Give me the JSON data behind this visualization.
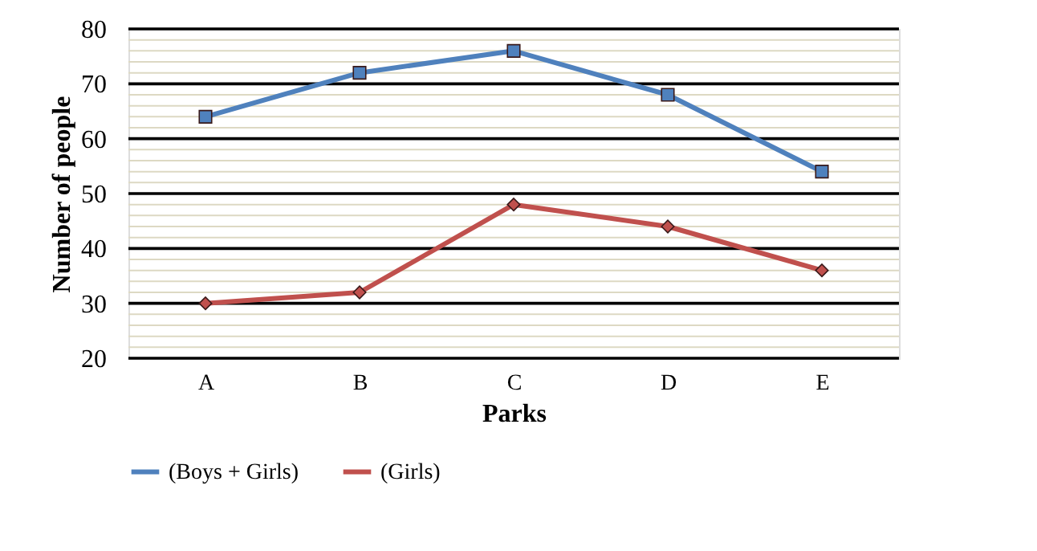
{
  "chart_data": {
    "type": "line",
    "xlabel": "Parks",
    "ylabel": "Number of people",
    "categories": [
      "A",
      "B",
      "C",
      "D",
      "E"
    ],
    "series": [
      {
        "name": "(Boys + Girls)",
        "color": "#4f81bd",
        "marker": "square",
        "values": [
          64,
          72,
          76,
          68,
          54
        ]
      },
      {
        "name": "(Girls)",
        "color": "#c0504d",
        "marker": "diamond",
        "values": [
          30,
          32,
          48,
          44,
          36
        ]
      }
    ],
    "ylim": [
      20,
      80
    ],
    "yticks": [
      20,
      {
        "value": 22,
        "label": null
      },
      {
        "value": 24,
        "label": null
      },
      {
        "value": 26,
        "label": null
      },
      {
        "value": 28,
        "label": null
      },
      30,
      {
        "value": 32,
        "label": null
      },
      {
        "value": 34,
        "label": null
      },
      {
        "value": 36,
        "label": null
      },
      {
        "value": 38,
        "label": null
      },
      40,
      {
        "value": 42,
        "label": null
      },
      {
        "value": 44,
        "label": null
      },
      {
        "value": 46,
        "label": null
      },
      {
        "value": 48,
        "label": null
      },
      50,
      {
        "value": 52,
        "label": null
      },
      {
        "value": 54,
        "label": null
      },
      {
        "value": 56,
        "label": null
      },
      {
        "value": 58,
        "label": null
      },
      60,
      {
        "value": 62,
        "label": null
      },
      {
        "value": 64,
        "label": null
      },
      {
        "value": 66,
        "label": null
      },
      {
        "value": 68,
        "label": null
      },
      70,
      {
        "value": 72,
        "label": null
      },
      {
        "value": 74,
        "label": null
      },
      {
        "value": 76,
        "label": null
      },
      {
        "value": 78,
        "label": null
      },
      80
    ],
    "grid": "y",
    "legend": "bottom",
    "line_style": "solid"
  }
}
